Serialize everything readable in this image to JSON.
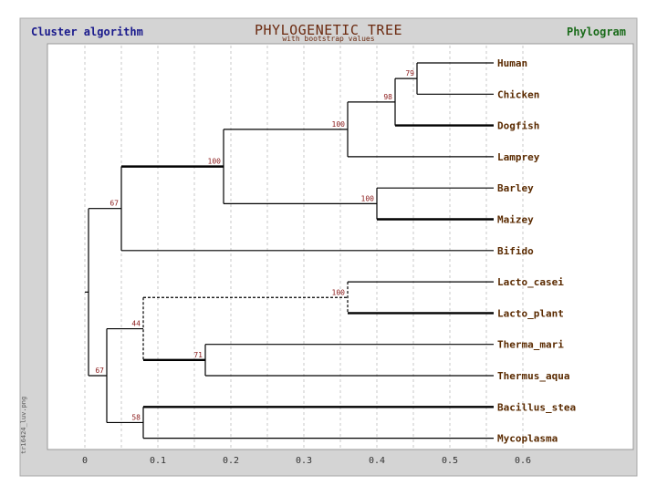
{
  "header": {
    "left": "Cluster algorithm",
    "title": "PHYLOGENETIC TREE",
    "subtitle": "with bootstrap values",
    "right": "Phylogram"
  },
  "side_note": "tr16424_luv.png",
  "colors": {
    "frame_bg": "#d4d4d4",
    "plot_bg": "#ffffff",
    "branch": "#000000",
    "bootstrap": "#8b1a1a",
    "leaf_label": "#5a2a00",
    "grid": "#c8c8c8"
  },
  "axis": {
    "ticks": [
      0,
      0.1,
      0.2,
      0.3,
      0.4,
      0.5,
      0.6
    ],
    "tick_labels": [
      "0",
      "0.1",
      "0.2",
      "0.3",
      "0.4",
      "0.5",
      "0.6"
    ]
  },
  "tree": {
    "leaves": [
      {
        "id": "human",
        "name": "Human",
        "x": 0.56
      },
      {
        "id": "chicken",
        "name": "Chicken",
        "x": 0.56
      },
      {
        "id": "dogfish",
        "name": "Dogfish",
        "x": 0.56
      },
      {
        "id": "lamprey",
        "name": "Lamprey",
        "x": 0.56
      },
      {
        "id": "barley",
        "name": "Barley",
        "x": 0.56
      },
      {
        "id": "maizey",
        "name": "Maizey",
        "x": 0.56
      },
      {
        "id": "bifido",
        "name": "Bifido",
        "x": 0.56
      },
      {
        "id": "lacto-casei",
        "name": "Lacto_casei",
        "x": 0.56
      },
      {
        "id": "lacto-plant",
        "name": "Lacto_plant",
        "x": 0.56
      },
      {
        "id": "therma-mari",
        "name": "Therma_mari",
        "x": 0.56
      },
      {
        "id": "thermus-aqua",
        "name": "Thermus_aqua",
        "x": 0.56
      },
      {
        "id": "bacillus-stea",
        "name": "Bacillus_stea",
        "x": 0.56
      },
      {
        "id": "mycoplasma",
        "name": "Mycoplasma",
        "x": 0.56
      }
    ],
    "nodes": [
      {
        "id": "n79",
        "x": 0.455,
        "bootstrap": "79",
        "children": [
          "human",
          "chicken"
        ]
      },
      {
        "id": "n98",
        "x": 0.425,
        "bootstrap": "98",
        "children": [
          "n79",
          "dogfish"
        ]
      },
      {
        "id": "n100a",
        "x": 0.36,
        "bootstrap": "100",
        "children": [
          "n98",
          "lamprey"
        ]
      },
      {
        "id": "n100c",
        "x": 0.4,
        "bootstrap": "100",
        "children": [
          "barley",
          "maizey"
        ]
      },
      {
        "id": "n100b",
        "x": 0.19,
        "bootstrap": "100",
        "children": [
          "n100a",
          "n100c"
        ]
      },
      {
        "id": "n67a",
        "x": 0.05,
        "bootstrap": "67",
        "children": [
          "n100b",
          "bifido"
        ]
      },
      {
        "id": "n100d",
        "x": 0.36,
        "bootstrap": "100",
        "children": [
          "lacto-casei",
          "lacto-plant"
        ]
      },
      {
        "id": "n71",
        "x": 0.165,
        "bootstrap": "71",
        "children": [
          "therma-mari",
          "thermus-aqua"
        ]
      },
      {
        "id": "n44",
        "x": 0.08,
        "bootstrap": "44",
        "children": [
          "n100d",
          "n71"
        ]
      },
      {
        "id": "n58",
        "x": 0.08,
        "bootstrap": "58",
        "children": [
          "bacillus-stea",
          "mycoplasma"
        ]
      },
      {
        "id": "n67b",
        "x": 0.03,
        "bootstrap": "67",
        "children": [
          "n44",
          "n58"
        ]
      },
      {
        "id": "root",
        "x": 0.005,
        "bootstrap": "",
        "children": [
          "n67a",
          "n67b"
        ]
      }
    ]
  }
}
